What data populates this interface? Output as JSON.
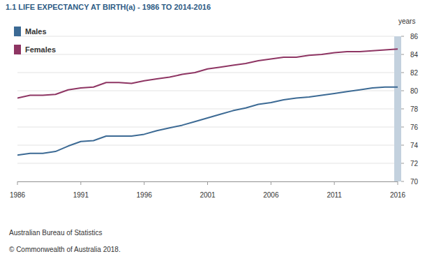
{
  "chart_data": {
    "type": "line",
    "title": "1.1 LIFE EXPECTANCY AT BIRTH(a) - 1986 TO 2014-2016",
    "y_label": "years",
    "source": "Australian Bureau of Statistics",
    "copyright": "© Commonwealth of Australia 2018.",
    "x": [
      1986,
      1987,
      1988,
      1989,
      1990,
      1991,
      1992,
      1993,
      1994,
      1995,
      1996,
      1997,
      1998,
      1999,
      2000,
      2001,
      2002,
      2003,
      2004,
      2005,
      2006,
      2007,
      2008,
      2009,
      2010,
      2011,
      2012,
      2013,
      2014,
      2015,
      2016
    ],
    "series": [
      {
        "name": "Males",
        "color": "#3c6a94",
        "values": [
          72.9,
          73.1,
          73.1,
          73.3,
          73.9,
          74.4,
          74.5,
          75.0,
          75.0,
          75.0,
          75.2,
          75.6,
          75.9,
          76.2,
          76.6,
          77.0,
          77.4,
          77.8,
          78.1,
          78.5,
          78.7,
          79.0,
          79.2,
          79.3,
          79.5,
          79.7,
          79.9,
          80.1,
          80.3,
          80.4,
          80.4
        ]
      },
      {
        "name": "Females",
        "color": "#8e3563",
        "values": [
          79.2,
          79.5,
          79.5,
          79.6,
          80.1,
          80.3,
          80.4,
          80.9,
          80.9,
          80.8,
          81.1,
          81.3,
          81.5,
          81.8,
          82.0,
          82.4,
          82.6,
          82.8,
          83.0,
          83.3,
          83.5,
          83.7,
          83.7,
          83.9,
          84.0,
          84.2,
          84.3,
          84.3,
          84.4,
          84.5,
          84.6
        ]
      }
    ],
    "xlim": [
      1986,
      2016
    ],
    "xticks": [
      1986,
      1991,
      1996,
      2001,
      2006,
      2011,
      2016
    ],
    "ylim": [
      70,
      86
    ],
    "yticks": [
      70,
      72,
      74,
      76,
      78,
      80,
      82,
      84,
      86
    ],
    "grid": true,
    "legend": "top-left"
  }
}
